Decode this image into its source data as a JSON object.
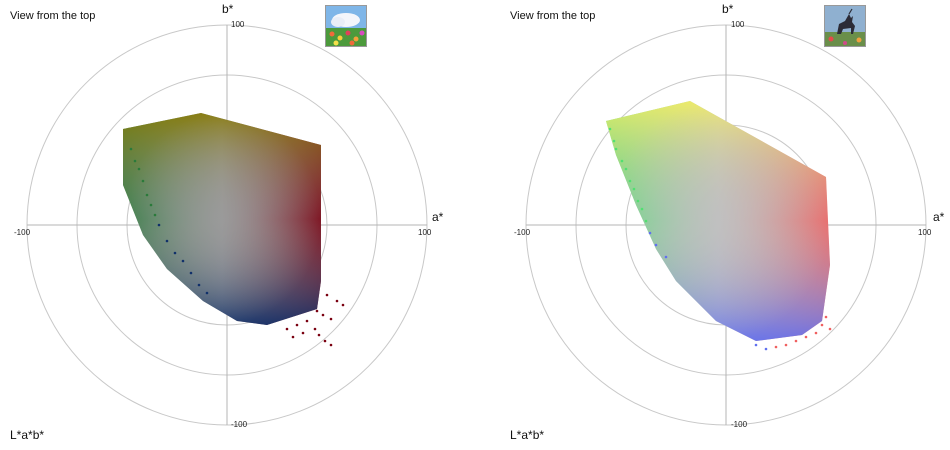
{
  "chart_data": [
    {
      "type": "scatter",
      "title": "View from the top",
      "corner_label": "L*a*b*",
      "xlabel": "a*",
      "ylabel": "b*",
      "xlim": [
        -100,
        100
      ],
      "ylim": [
        -100,
        100
      ],
      "ticks": {
        "xmin": "-100",
        "xmax": "100",
        "ymin": "-100",
        "ymax": "100"
      },
      "rings": [
        25,
        50,
        75,
        100
      ],
      "grid": true,
      "thumbnail": "flower-field-sky-icon",
      "gamut_outline": [
        [
          -52,
          48
        ],
        [
          -13,
          56
        ],
        [
          47,
          40
        ],
        [
          47,
          -28
        ],
        [
          45,
          -42
        ],
        [
          20,
          -50
        ],
        [
          5,
          -48
        ],
        [
          -12,
          -38
        ],
        [
          -30,
          -22
        ],
        [
          -42,
          -5
        ],
        [
          -52,
          20
        ]
      ],
      "outlier_points": [
        [
          50,
          -35
        ],
        [
          55,
          -38
        ],
        [
          58,
          -40
        ],
        [
          45,
          -43
        ],
        [
          48,
          -45
        ],
        [
          52,
          -47
        ],
        [
          40,
          -48
        ],
        [
          44,
          -52
        ],
        [
          46,
          -55
        ],
        [
          49,
          -58
        ],
        [
          52,
          -60
        ],
        [
          35,
          -50
        ],
        [
          38,
          -54
        ],
        [
          30,
          -52
        ],
        [
          33,
          -56
        ],
        [
          -48,
          38
        ],
        [
          -46,
          32
        ],
        [
          -44,
          28
        ],
        [
          -42,
          22
        ],
        [
          -40,
          15
        ],
        [
          -38,
          10
        ],
        [
          -36,
          5
        ],
        [
          -34,
          0
        ],
        [
          -30,
          -8
        ],
        [
          -26,
          -14
        ],
        [
          -22,
          -18
        ],
        [
          -18,
          -24
        ],
        [
          -14,
          -30
        ],
        [
          -10,
          -34
        ]
      ],
      "color_stops": {
        "left": "#2a7a3a",
        "top": "#8a7a00",
        "right": "#7a0010",
        "bottom": "#10306a",
        "center": "#9a9a9a"
      }
    },
    {
      "type": "scatter",
      "title": "View from the top",
      "corner_label": "L*a*b*",
      "xlabel": "a*",
      "ylabel": "b*",
      "xlim": [
        -100,
        100
      ],
      "ylim": [
        -100,
        100
      ],
      "ticks": {
        "xmin": "-100",
        "xmax": "100",
        "ymin": "-100",
        "ymax": "100"
      },
      "rings": [
        25,
        50,
        75,
        100
      ],
      "grid": true,
      "thumbnail": "unicorn-statue-icon",
      "gamut_outline": [
        [
          -60,
          52
        ],
        [
          -18,
          62
        ],
        [
          50,
          24
        ],
        [
          52,
          -20
        ],
        [
          48,
          -48
        ],
        [
          38,
          -55
        ],
        [
          15,
          -58
        ],
        [
          -5,
          -48
        ],
        [
          -25,
          -28
        ],
        [
          -35,
          -12
        ],
        [
          -45,
          10
        ],
        [
          -55,
          35
        ]
      ],
      "outlier_points": [
        [
          -58,
          48
        ],
        [
          -56,
          42
        ],
        [
          -55,
          38
        ],
        [
          -52,
          32
        ],
        [
          -50,
          28
        ],
        [
          -48,
          22
        ],
        [
          -46,
          18
        ],
        [
          -44,
          12
        ],
        [
          -42,
          8
        ],
        [
          -40,
          2
        ],
        [
          -38,
          -4
        ],
        [
          -35,
          -10
        ],
        [
          -30,
          -16
        ],
        [
          15,
          -60
        ],
        [
          20,
          -62
        ],
        [
          25,
          -61
        ],
        [
          30,
          -60
        ],
        [
          35,
          -58
        ],
        [
          40,
          -56
        ],
        [
          45,
          -54
        ],
        [
          48,
          -50
        ],
        [
          52,
          -52
        ],
        [
          50,
          -46
        ]
      ],
      "color_stops": {
        "left": "#50e070",
        "top": "#f8f060",
        "right": "#f06060",
        "bottom": "#6070f0",
        "center": "#c0c0c0"
      }
    }
  ]
}
